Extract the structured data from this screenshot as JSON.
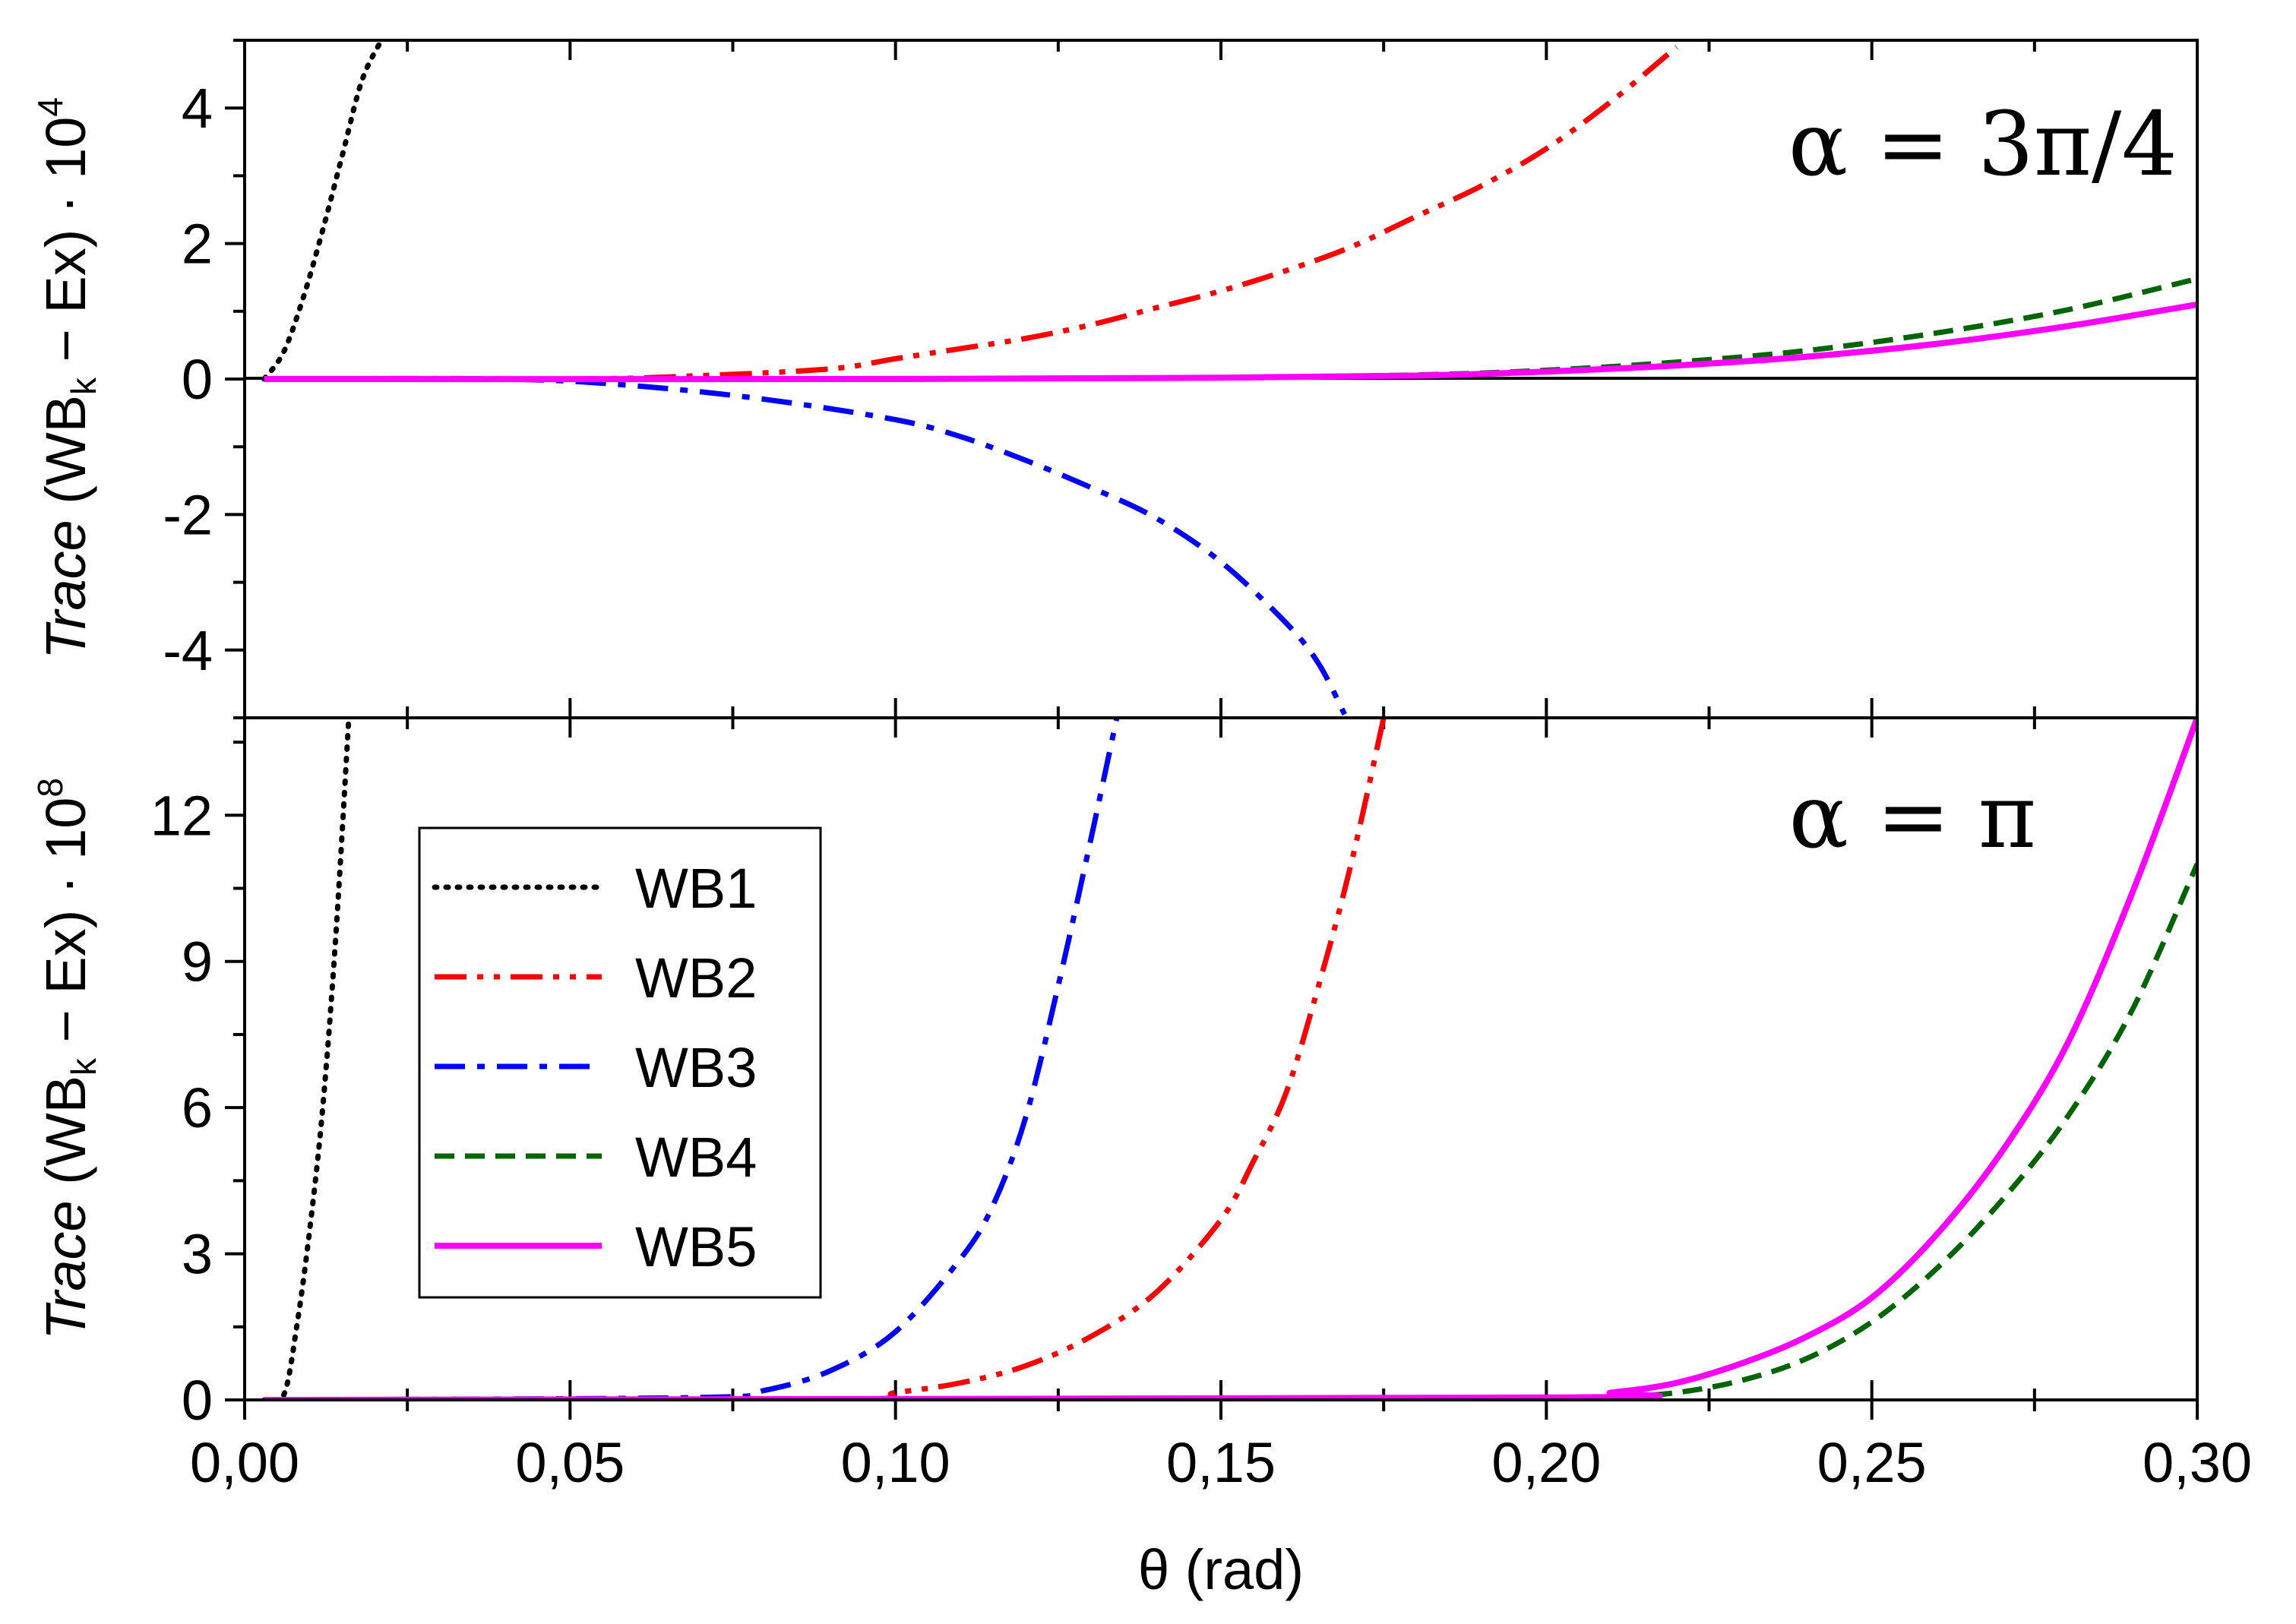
{
  "chart_data": [
    {
      "type": "line",
      "panel": "top",
      "annotation": "α = 3π/4",
      "xlabel": "",
      "ylabel": {
        "prefix": "Trace",
        "middle": " (WB",
        "sub": "k",
        "suffix": " − Ex) · 10",
        "sup": "4"
      },
      "xlim": [
        0,
        0.3
      ],
      "ylim": [
        -5,
        5
      ],
      "yticks": [
        "-4",
        "-2",
        "0",
        "2",
        "4"
      ],
      "yticks_values": [
        -4,
        -2,
        0,
        2,
        4
      ],
      "series": [
        {
          "name": "WB1",
          "color": "#000000",
          "style": "dotted",
          "x": [
            0.003,
            0.006,
            0.009,
            0.012,
            0.015,
            0.018,
            0.021
          ],
          "y": [
            0.0,
            0.4,
            1.2,
            2.2,
            3.3,
            4.4,
            5.0
          ]
        },
        {
          "name": "WB2",
          "color": "#ff0000",
          "style": "dash-dot-dot",
          "x": [
            0.003,
            0.05,
            0.07,
            0.09,
            0.1,
            0.11,
            0.12,
            0.13,
            0.14,
            0.15,
            0.16,
            0.17,
            0.18,
            0.19,
            0.2,
            0.21,
            0.22
          ],
          "y": [
            0.0,
            0.0,
            0.05,
            0.15,
            0.3,
            0.45,
            0.6,
            0.8,
            1.05,
            1.3,
            1.6,
            1.95,
            2.4,
            2.85,
            3.4,
            4.1,
            4.9
          ]
        },
        {
          "name": "WB3",
          "color": "#0000ff",
          "style": "dash-dot",
          "x": [
            0.003,
            0.04,
            0.06,
            0.08,
            0.1,
            0.11,
            0.12,
            0.13,
            0.14,
            0.15,
            0.16,
            0.165,
            0.169
          ],
          "y": [
            0.0,
            0.0,
            -0.1,
            -0.3,
            -0.6,
            -0.85,
            -1.2,
            -1.6,
            -2.05,
            -2.7,
            -3.6,
            -4.2,
            -4.95
          ]
        },
        {
          "name": "WB4",
          "color": "#006400",
          "style": "dashed",
          "x": [
            0.003,
            0.1,
            0.15,
            0.18,
            0.2,
            0.22,
            0.24,
            0.26,
            0.28,
            0.3
          ],
          "y": [
            0.0,
            0.0,
            0.02,
            0.06,
            0.13,
            0.25,
            0.42,
            0.68,
            1.02,
            1.48
          ]
        },
        {
          "name": "WB5",
          "color": "#ff00ff",
          "style": "solid",
          "x": [
            0.003,
            0.1,
            0.15,
            0.18,
            0.2,
            0.22,
            0.24,
            0.26,
            0.28,
            0.3
          ],
          "y": [
            0.0,
            0.0,
            0.02,
            0.05,
            0.11,
            0.2,
            0.33,
            0.52,
            0.78,
            1.1
          ]
        }
      ]
    },
    {
      "type": "line",
      "panel": "bottom",
      "annotation": "α = π",
      "xlabel": "θ (rad)",
      "ylabel": {
        "prefix": "Trace",
        "middle": " (WB",
        "sub": "k",
        "suffix": " − Ex) · 10",
        "sup": "8"
      },
      "xlim": [
        0,
        0.3
      ],
      "ylim": [
        0,
        14
      ],
      "xticks": [
        "0,00",
        "0,05",
        "0,10",
        "0,15",
        "0,20",
        "0,25",
        "0,30"
      ],
      "xticks_values": [
        0,
        0.05,
        0.1,
        0.15,
        0.2,
        0.25,
        0.3
      ],
      "yticks": [
        "0",
        "3",
        "6",
        "9",
        "12"
      ],
      "yticks_values": [
        0,
        3,
        6,
        9,
        12
      ],
      "series": [
        {
          "name": "WB1",
          "color": "#000000",
          "style": "dotted",
          "x": [
            0.003,
            0.006,
            0.008,
            0.01,
            0.012,
            0.014,
            0.016
          ],
          "y": [
            0.0,
            0.1,
            1.5,
            3.5,
            6.0,
            9.5,
            14.0
          ]
        },
        {
          "name": "WB2",
          "color": "#ff0000",
          "style": "dash-dot-dot",
          "x": [
            0.003,
            0.09,
            0.1,
            0.11,
            0.12,
            0.13,
            0.14,
            0.15,
            0.155,
            0.16,
            0.165,
            0.17,
            0.175
          ],
          "y": [
            0.0,
            0.0,
            0.15,
            0.35,
            0.7,
            1.3,
            2.2,
            3.7,
            4.9,
            6.3,
            8.5,
            11.0,
            14.0
          ]
        },
        {
          "name": "WB3",
          "color": "#0000ff",
          "style": "dash-dot",
          "x": [
            0.003,
            0.07,
            0.08,
            0.09,
            0.1,
            0.11,
            0.115,
            0.12,
            0.125,
            0.13,
            0.134
          ],
          "y": [
            0.0,
            0.05,
            0.2,
            0.6,
            1.4,
            2.9,
            4.0,
            5.8,
            8.5,
            11.5,
            14.0
          ]
        },
        {
          "name": "WB4",
          "color": "#006400",
          "style": "dashed",
          "x": [
            0.003,
            0.2,
            0.21,
            0.22,
            0.23,
            0.24,
            0.25,
            0.26,
            0.27,
            0.28,
            0.29,
            0.3
          ],
          "y": [
            0.0,
            0.0,
            0.05,
            0.15,
            0.4,
            0.85,
            1.6,
            2.7,
            4.1,
            5.8,
            8.0,
            11.0
          ]
        },
        {
          "name": "WB5",
          "color": "#ff00ff",
          "style": "solid",
          "x": [
            0.003,
            0.2,
            0.21,
            0.22,
            0.23,
            0.24,
            0.25,
            0.26,
            0.27,
            0.28,
            0.29,
            0.3
          ],
          "y": [
            0.0,
            0.05,
            0.15,
            0.35,
            0.75,
            1.3,
            2.1,
            3.4,
            5.1,
            7.3,
            10.4,
            14.0
          ]
        }
      ],
      "legend": {
        "placement": "left-center",
        "entries": [
          "WB1",
          "WB2",
          "WB3",
          "WB4",
          "WB5"
        ]
      }
    }
  ]
}
